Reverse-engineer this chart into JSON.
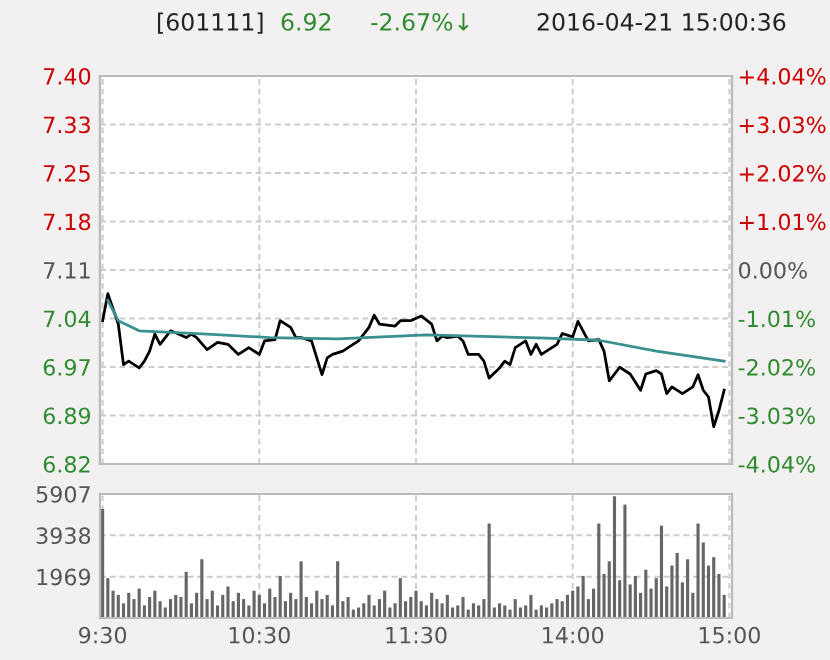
{
  "chart_data": [
    {
      "type": "line",
      "title": "[601111]",
      "annotations": [
        "6.92",
        "-2.67%↓",
        "2016-04-21 15:00:36"
      ],
      "categories": [
        null,
        null,
        null,
        null,
        null,
        null,
        null,
        null,
        null,
        null,
        null,
        null,
        null,
        null,
        null,
        null,
        null,
        null,
        null,
        null,
        null,
        null,
        null,
        null,
        null,
        null,
        null,
        null,
        null,
        null,
        null,
        null,
        null,
        null,
        null,
        null,
        null,
        null,
        null,
        null,
        null,
        null,
        null,
        null,
        null,
        null,
        null,
        null,
        null,
        null,
        null,
        null,
        null,
        null,
        null,
        null,
        null,
        null,
        null,
        null,
        null,
        null,
        null,
        null,
        null,
        null,
        null,
        null,
        null,
        null,
        null,
        null,
        null,
        null,
        null,
        null,
        null,
        null,
        null,
        null,
        null,
        null,
        null,
        null,
        null,
        null,
        null,
        null,
        null,
        null,
        null,
        null,
        null,
        null,
        null,
        null,
        null,
        null,
        null,
        null,
        null,
        null,
        null,
        null,
        null,
        null,
        null,
        null,
        null,
        null,
        null,
        null,
        null,
        null,
        null,
        null,
        null,
        null,
        null,
        null,
        null
      ],
      "ylim": [
        6.8228,
        7.3972
      ],
      "yticks": [
        {
          "value": 6.8228,
          "label": "6.82"
        },
        {
          "value": 6.8946,
          "label": "6.89"
        },
        {
          "value": 6.9664,
          "label": "6.97"
        },
        {
          "value": 7.0382,
          "label": "7.04"
        },
        {
          "value": 7.11,
          "label": "7.11"
        },
        {
          "value": 7.1818,
          "label": "7.18"
        },
        {
          "value": 7.2536,
          "label": "7.25"
        },
        {
          "value": 7.3254,
          "label": "7.33"
        },
        {
          "value": 7.3972,
          "label": "7.40"
        }
      ],
      "y2lim": [
        -4.04,
        4.04
      ],
      "y2ticks": [
        {
          "value": -4.04,
          "label": "-4.04%"
        },
        {
          "value": -3.03,
          "label": "-3.03%"
        },
        {
          "value": -2.02,
          "label": "-2.02%"
        },
        {
          "value": -1.01,
          "label": "-1.01%"
        },
        {
          "value": 0,
          "label": "0.00%"
        },
        {
          "value": 1.01,
          "label": "+1.01%"
        },
        {
          "value": 2.02,
          "label": "+2.02%"
        },
        {
          "value": 3.03,
          "label": "+3.03%"
        },
        {
          "value": 4.04,
          "label": "+4.04%"
        }
      ],
      "tick_labels": "y",
      "grid": true,
      "series": [
        {
          "color": "#000000",
          "values": [
            7.035,
            7.075,
            null,
            7.03,
            6.97,
            6.975,
            null,
            6.965,
            6.975,
            6.99,
            7.015,
            7.0,
            null,
            7.02,
            7.017,
            null,
            7.01,
            7.015,
            7.01,
            null,
            6.992,
            null,
            7.003,
            null,
            7.0,
            null,
            6.985,
            null,
            6.995,
            null,
            6.985,
            7.005,
            null,
            7.007,
            7.035,
            null,
            7.025,
            7.01,
            7.01,
            null,
            7.005,
            null,
            6.955,
            6.98,
            6.985,
            null,
            6.99,
            6.995,
            null,
            7.005,
            null,
            7.025,
            7.043,
            7.03,
            null,
            null,
            7.027,
            7.035,
            null,
            7.035,
            null,
            7.042,
            null,
            7.03,
            7.005,
            7.012,
            7.01,
            null,
            7.012,
            7.005,
            6.985,
            null,
            6.985,
            6.975,
            6.95,
            null,
            6.965,
            6.975,
            6.97,
            6.995,
            null,
            7.005,
            6.985,
            7.0,
            6.985,
            null,
            null,
            7.0,
            7.016,
            null,
            7.011,
            7.034,
            null,
            7.005,
            null,
            7.007,
            6.99,
            6.946,
            null,
            6.966,
            null,
            6.956,
            null,
            6.932,
            6.956,
            null,
            6.961,
            6.956,
            6.927,
            6.937,
            null,
            6.927,
            null,
            6.937,
            6.955,
            6.932,
            6.922,
            6.878,
            6.902,
            6.932,
            null
          ]
        },
        {
          "color": "#3a8f8f",
          "values": [
            null,
            7.065,
            null,
            7.035,
            null,
            null,
            null,
            7.02,
            null,
            null,
            null,
            null,
            null,
            null,
            null,
            null,
            null,
            null,
            null,
            null,
            7.015,
            null,
            null,
            null,
            null,
            null,
            null,
            null,
            null,
            null,
            null,
            null,
            7.01,
            null,
            null,
            null,
            null,
            null,
            null,
            null,
            null,
            null,
            null,
            null,
            null,
            7.008,
            null,
            null,
            null,
            null,
            null,
            null,
            null,
            null,
            null,
            null,
            null,
            null,
            null,
            null,
            null,
            null,
            7.014,
            null,
            null,
            null,
            null,
            null,
            null,
            null,
            null,
            null,
            null,
            null,
            null,
            null,
            null,
            null,
            null,
            null,
            null,
            null,
            null,
            null,
            null,
            7.009,
            null,
            null,
            null,
            null,
            null,
            null,
            null,
            null,
            null,
            7.006,
            null,
            null,
            null,
            null,
            null,
            null,
            null,
            null,
            null,
            null,
            6.99,
            null,
            null,
            null,
            null,
            null,
            null,
            null,
            null,
            null,
            null,
            null,
            null,
            6.975,
            null
          ]
        }
      ]
    },
    {
      "type": "bar",
      "categories": [
        "9:30",
        null,
        null,
        null,
        null,
        null,
        null,
        null,
        null,
        null,
        null,
        null,
        null,
        null,
        null,
        null,
        null,
        null,
        null,
        null,
        null,
        null,
        null,
        null,
        null,
        null,
        null,
        null,
        null,
        null,
        "10:30",
        null,
        null,
        null,
        null,
        null,
        null,
        null,
        null,
        null,
        null,
        null,
        null,
        null,
        null,
        null,
        null,
        null,
        null,
        null,
        null,
        null,
        null,
        null,
        null,
        null,
        null,
        null,
        null,
        null,
        "11:30",
        null,
        null,
        null,
        null,
        null,
        null,
        null,
        null,
        null,
        null,
        null,
        null,
        null,
        null,
        null,
        null,
        null,
        null,
        null,
        null,
        null,
        null,
        null,
        null,
        null,
        null,
        null,
        null,
        null,
        "14:00",
        null,
        null,
        null,
        null,
        null,
        null,
        null,
        null,
        null,
        null,
        null,
        null,
        null,
        null,
        null,
        null,
        null,
        null,
        null,
        null,
        null,
        null,
        null,
        null,
        null,
        null,
        null,
        null,
        null,
        "15:00"
      ],
      "ylim": [
        0,
        5907
      ],
      "yticks": [
        1969,
        3938,
        5907
      ],
      "grid": true,
      "series": [
        {
          "color": "#666666",
          "values": [
            5200,
            1900,
            1300,
            1100,
            700,
            1200,
            900,
            1400,
            600,
            1000,
            1300,
            800,
            500,
            900,
            1100,
            1000,
            2200,
            700,
            1200,
            2800,
            900,
            1300,
            600,
            1100,
            1500,
            800,
            1200,
            900,
            600,
            1300,
            1100,
            700,
            1400,
            1000,
            2000,
            800,
            1200,
            900,
            2700,
            1000,
            700,
            1300,
            900,
            1100,
            600,
            2700,
            800,
            1000,
            400,
            500,
            700,
            1100,
            600,
            900,
            1300,
            500,
            700,
            1900,
            800,
            1000,
            1300,
            800,
            600,
            1200,
            900,
            700,
            1100,
            500,
            600,
            1000,
            400,
            700,
            600,
            900,
            4500,
            500,
            700,
            600,
            400,
            900,
            500,
            600,
            1100,
            400,
            600,
            500,
            700,
            900,
            800,
            1100,
            1300,
            1500,
            2000,
            900,
            1400,
            4500,
            2100,
            2700,
            5800,
            1800,
            5400,
            1600,
            2000,
            1200,
            2300,
            1400,
            1900,
            4400,
            1500,
            2500,
            3100,
            1700,
            2800,
            1200,
            4500,
            3600,
            2500,
            2900,
            2100,
            1100,
            null
          ]
        }
      ]
    }
  ]
}
